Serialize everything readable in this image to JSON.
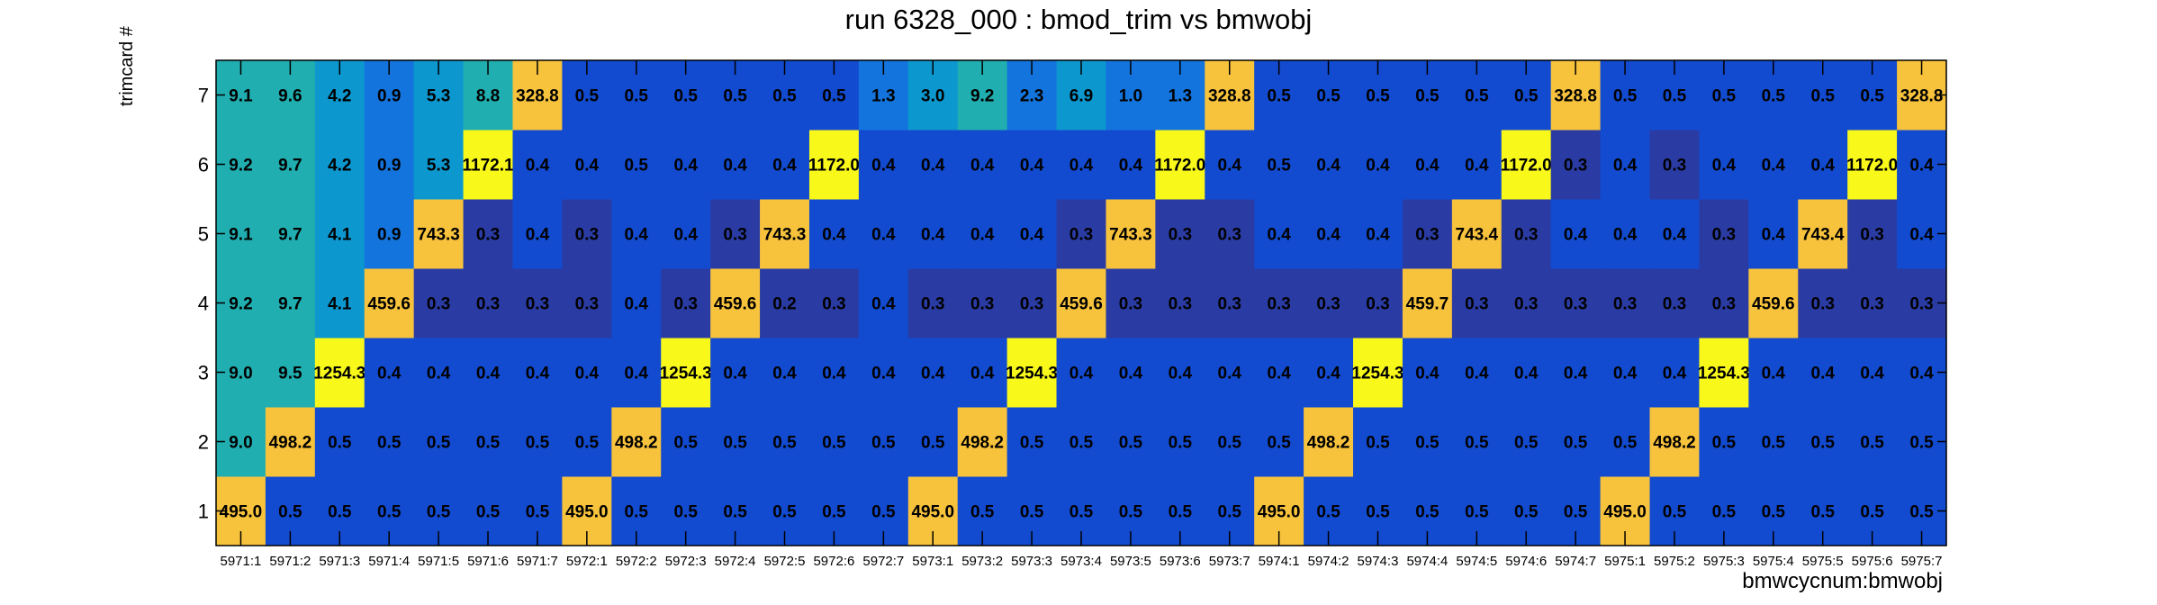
{
  "title": "run 6328_000 : bmod_trim vs bmwobj",
  "chart_data": {
    "type": "heatmap",
    "title": "run 6328_000 : bmod_trim vs bmwobj",
    "xlabel": "bmwcycnum:bmwobj",
    "ylabel": "trimcard #",
    "x_categories": [
      "5971:1",
      "5971:2",
      "5971:3",
      "5971:4",
      "5971:5",
      "5971:6",
      "5971:7",
      "5972:1",
      "5972:2",
      "5972:3",
      "5972:4",
      "5972:5",
      "5972:6",
      "5972:7",
      "5973:1",
      "5973:2",
      "5973:3",
      "5973:4",
      "5973:5",
      "5973:6",
      "5973:7",
      "5974:1",
      "5974:2",
      "5974:3",
      "5974:4",
      "5974:5",
      "5974:6",
      "5974:7",
      "5975:1",
      "5975:2",
      "5975:3",
      "5975:4",
      "5975:5",
      "5975:6",
      "5975:7"
    ],
    "y_categories": [
      "1",
      "2",
      "3",
      "4",
      "5",
      "6",
      "7"
    ],
    "values": [
      [
        "495.0",
        "0.5",
        "0.5",
        "0.5",
        "0.5",
        "0.5",
        "0.5",
        "495.0",
        "0.5",
        "0.5",
        "0.5",
        "0.5",
        "0.5",
        "0.5",
        "495.0",
        "0.5",
        "0.5",
        "0.5",
        "0.5",
        "0.5",
        "0.5",
        "495.0",
        "0.5",
        "0.5",
        "0.5",
        "0.5",
        "0.5",
        "0.5",
        "495.0",
        "0.5",
        "0.5",
        "0.5",
        "0.5",
        "0.5",
        "0.5"
      ],
      [
        "9.0",
        "498.2",
        "0.5",
        "0.5",
        "0.5",
        "0.5",
        "0.5",
        "0.5",
        "498.2",
        "0.5",
        "0.5",
        "0.5",
        "0.5",
        "0.5",
        "0.5",
        "498.2",
        "0.5",
        "0.5",
        "0.5",
        "0.5",
        "0.5",
        "0.5",
        "498.2",
        "0.5",
        "0.5",
        "0.5",
        "0.5",
        "0.5",
        "0.5",
        "498.2",
        "0.5",
        "0.5",
        "0.5",
        "0.5",
        "0.5"
      ],
      [
        "9.0",
        "9.5",
        "1254.3",
        "0.4",
        "0.4",
        "0.4",
        "0.4",
        "0.4",
        "0.4",
        "1254.3",
        "0.4",
        "0.4",
        "0.4",
        "0.4",
        "0.4",
        "0.4",
        "1254.3",
        "0.4",
        "0.4",
        "0.4",
        "0.4",
        "0.4",
        "0.4",
        "1254.3",
        "0.4",
        "0.4",
        "0.4",
        "0.4",
        "0.4",
        "0.4",
        "1254.3",
        "0.4",
        "0.4",
        "0.4",
        "0.4"
      ],
      [
        "9.2",
        "9.7",
        "4.1",
        "459.6",
        "0.3",
        "0.3",
        "0.3",
        "0.3",
        "0.4",
        "0.3",
        "459.6",
        "0.2",
        "0.3",
        "0.4",
        "0.3",
        "0.3",
        "0.3",
        "459.6",
        "0.3",
        "0.3",
        "0.3",
        "0.3",
        "0.3",
        "0.3",
        "459.7",
        "0.3",
        "0.3",
        "0.3",
        "0.3",
        "0.3",
        "0.3",
        "459.6",
        "0.3",
        "0.3",
        "0.3"
      ],
      [
        "9.1",
        "9.7",
        "4.1",
        "0.9",
        "743.3",
        "0.3",
        "0.4",
        "0.3",
        "0.4",
        "0.4",
        "0.3",
        "743.3",
        "0.4",
        "0.4",
        "0.4",
        "0.4",
        "0.4",
        "0.3",
        "743.3",
        "0.3",
        "0.3",
        "0.4",
        "0.4",
        "0.4",
        "0.3",
        "743.4",
        "0.3",
        "0.4",
        "0.4",
        "0.4",
        "0.3",
        "0.4",
        "743.4",
        "0.3",
        "0.4"
      ],
      [
        "9.2",
        "9.7",
        "4.2",
        "0.9",
        "5.3",
        "1172.1",
        "0.4",
        "0.4",
        "0.5",
        "0.4",
        "0.4",
        "0.4",
        "1172.0",
        "0.4",
        "0.4",
        "0.4",
        "0.4",
        "0.4",
        "0.4",
        "1172.0",
        "0.4",
        "0.5",
        "0.4",
        "0.4",
        "0.4",
        "0.4",
        "1172.0",
        "0.3",
        "0.4",
        "0.3",
        "0.4",
        "0.4",
        "0.4",
        "1172.0",
        "0.4"
      ],
      [
        "9.1",
        "9.6",
        "4.2",
        "0.9",
        "5.3",
        "8.8",
        "328.8",
        "0.5",
        "0.5",
        "0.5",
        "0.5",
        "0.5",
        "0.5",
        "1.3",
        "3.0",
        "9.2",
        "2.3",
        "6.9",
        "1.0",
        "1.3",
        "328.8",
        "0.5",
        "0.5",
        "0.5",
        "0.5",
        "0.5",
        "0.5",
        "328.8",
        "0.5",
        "0.5",
        "0.5",
        "0.5",
        "0.5",
        "0.5",
        "328.8"
      ]
    ],
    "colors": {
      "high": "#f9f81b",
      "upper": "#f8c33c",
      "mid_high": "#20aeb0",
      "mid": "#0c98cf",
      "low_mid": "#1474dd",
      "low": "#124bd0",
      "lowest": "#2a3ca4"
    },
    "grid": false
  }
}
